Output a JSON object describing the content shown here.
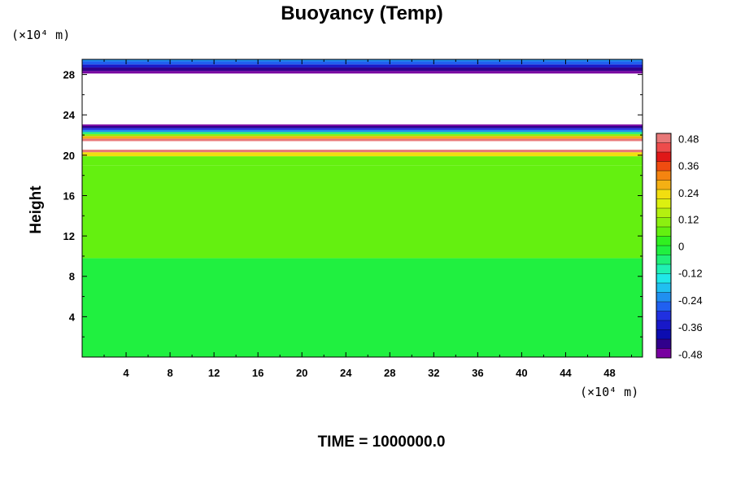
{
  "chart_data": {
    "type": "heatmap",
    "title": "Buoyancy (Temp)",
    "xlabel": "",
    "ylabel": "Height",
    "x_unit": "(×10⁴ m)",
    "y_unit": "(×10⁴ m)",
    "xlim": [
      0,
      51
    ],
    "ylim": [
      0,
      29.5
    ],
    "x_ticks": [
      4,
      8,
      12,
      16,
      20,
      24,
      28,
      32,
      36,
      40,
      44,
      48
    ],
    "y_ticks": [
      4,
      8,
      12,
      16,
      20,
      24,
      28
    ],
    "colorbar": {
      "range": [
        -0.48,
        0.48
      ],
      "tick_labels": [
        "0.48",
        "0.36",
        "0.24",
        "0.12",
        "0",
        "-0.12",
        "-0.24",
        "-0.36",
        "-0.48"
      ]
    },
    "layers": [
      {
        "y0": 0,
        "y1": 9.8,
        "value": -0.02
      },
      {
        "y0": 9.8,
        "y1": 19.0,
        "value": 0.06
      },
      {
        "y0": 19.0,
        "y1": 19.9,
        "value": 0.08
      },
      {
        "y0": 19.9,
        "y1": 20.3,
        "value": 0.2
      },
      {
        "y0": 20.3,
        "y1": 20.55,
        "value": 0.44
      },
      {
        "y0": 20.55,
        "y1": 21.4,
        "value": null
      },
      {
        "y0": 21.4,
        "y1": 21.65,
        "value": 0.44
      },
      {
        "y0": 21.65,
        "y1": 21.9,
        "value": 0.26
      },
      {
        "y0": 21.9,
        "y1": 22.1,
        "value": 0.12
      },
      {
        "y0": 22.1,
        "y1": 22.3,
        "value": -0.06
      },
      {
        "y0": 22.3,
        "y1": 22.5,
        "value": -0.2
      },
      {
        "y0": 22.5,
        "y1": 22.7,
        "value": -0.3
      },
      {
        "y0": 22.7,
        "y1": 22.9,
        "value": -0.4
      },
      {
        "y0": 22.9,
        "y1": 23.05,
        "value": -0.46
      },
      {
        "y0": 23.05,
        "y1": 28.1,
        "value": null
      },
      {
        "y0": 28.1,
        "y1": 28.35,
        "value": -0.46
      },
      {
        "y0": 28.35,
        "y1": 28.7,
        "value": -0.4
      },
      {
        "y0": 28.7,
        "y1": 29.0,
        "value": -0.32
      },
      {
        "y0": 29.0,
        "y1": 29.3,
        "value": -0.26
      },
      {
        "y0": 29.3,
        "y1": 29.5,
        "value": -0.2
      }
    ]
  },
  "footer": {
    "time_label": "TIME = 1000000.0"
  }
}
